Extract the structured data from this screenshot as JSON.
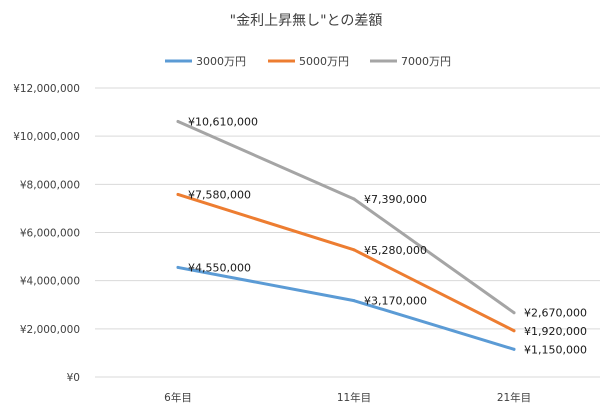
{
  "chart_data": {
    "type": "line",
    "title": "\"金利上昇無し\"との差額",
    "xlabel": "",
    "ylabel": "",
    "categories": [
      "6年目",
      "11年目",
      "21年目"
    ],
    "ylim": [
      0,
      12000000
    ],
    "yticks": [
      0,
      2000000,
      4000000,
      6000000,
      8000000,
      10000000,
      12000000
    ],
    "ytick_labels": [
      "¥0",
      "¥2,000,000",
      "¥4,000,000",
      "¥6,000,000",
      "¥8,000,000",
      "¥10,000,000",
      "¥12,000,000"
    ],
    "grid": true,
    "legend_position": "top",
    "series": [
      {
        "name": "3000万円",
        "color": "#5b9bd5",
        "values": [
          4550000,
          3170000,
          1150000
        ],
        "labels": [
          "¥4,550,000",
          "¥3,170,000",
          "¥1,150,000"
        ]
      },
      {
        "name": "5000万円",
        "color": "#ed7d31",
        "values": [
          7580000,
          5280000,
          1920000
        ],
        "labels": [
          "¥7,580,000",
          "¥5,280,000",
          "¥1,920,000"
        ]
      },
      {
        "name": "7000万円",
        "color": "#a5a5a5",
        "values": [
          10610000,
          7390000,
          2670000
        ],
        "labels": [
          "¥10,610,000",
          "¥7,390,000",
          "¥2,670,000"
        ]
      }
    ]
  }
}
